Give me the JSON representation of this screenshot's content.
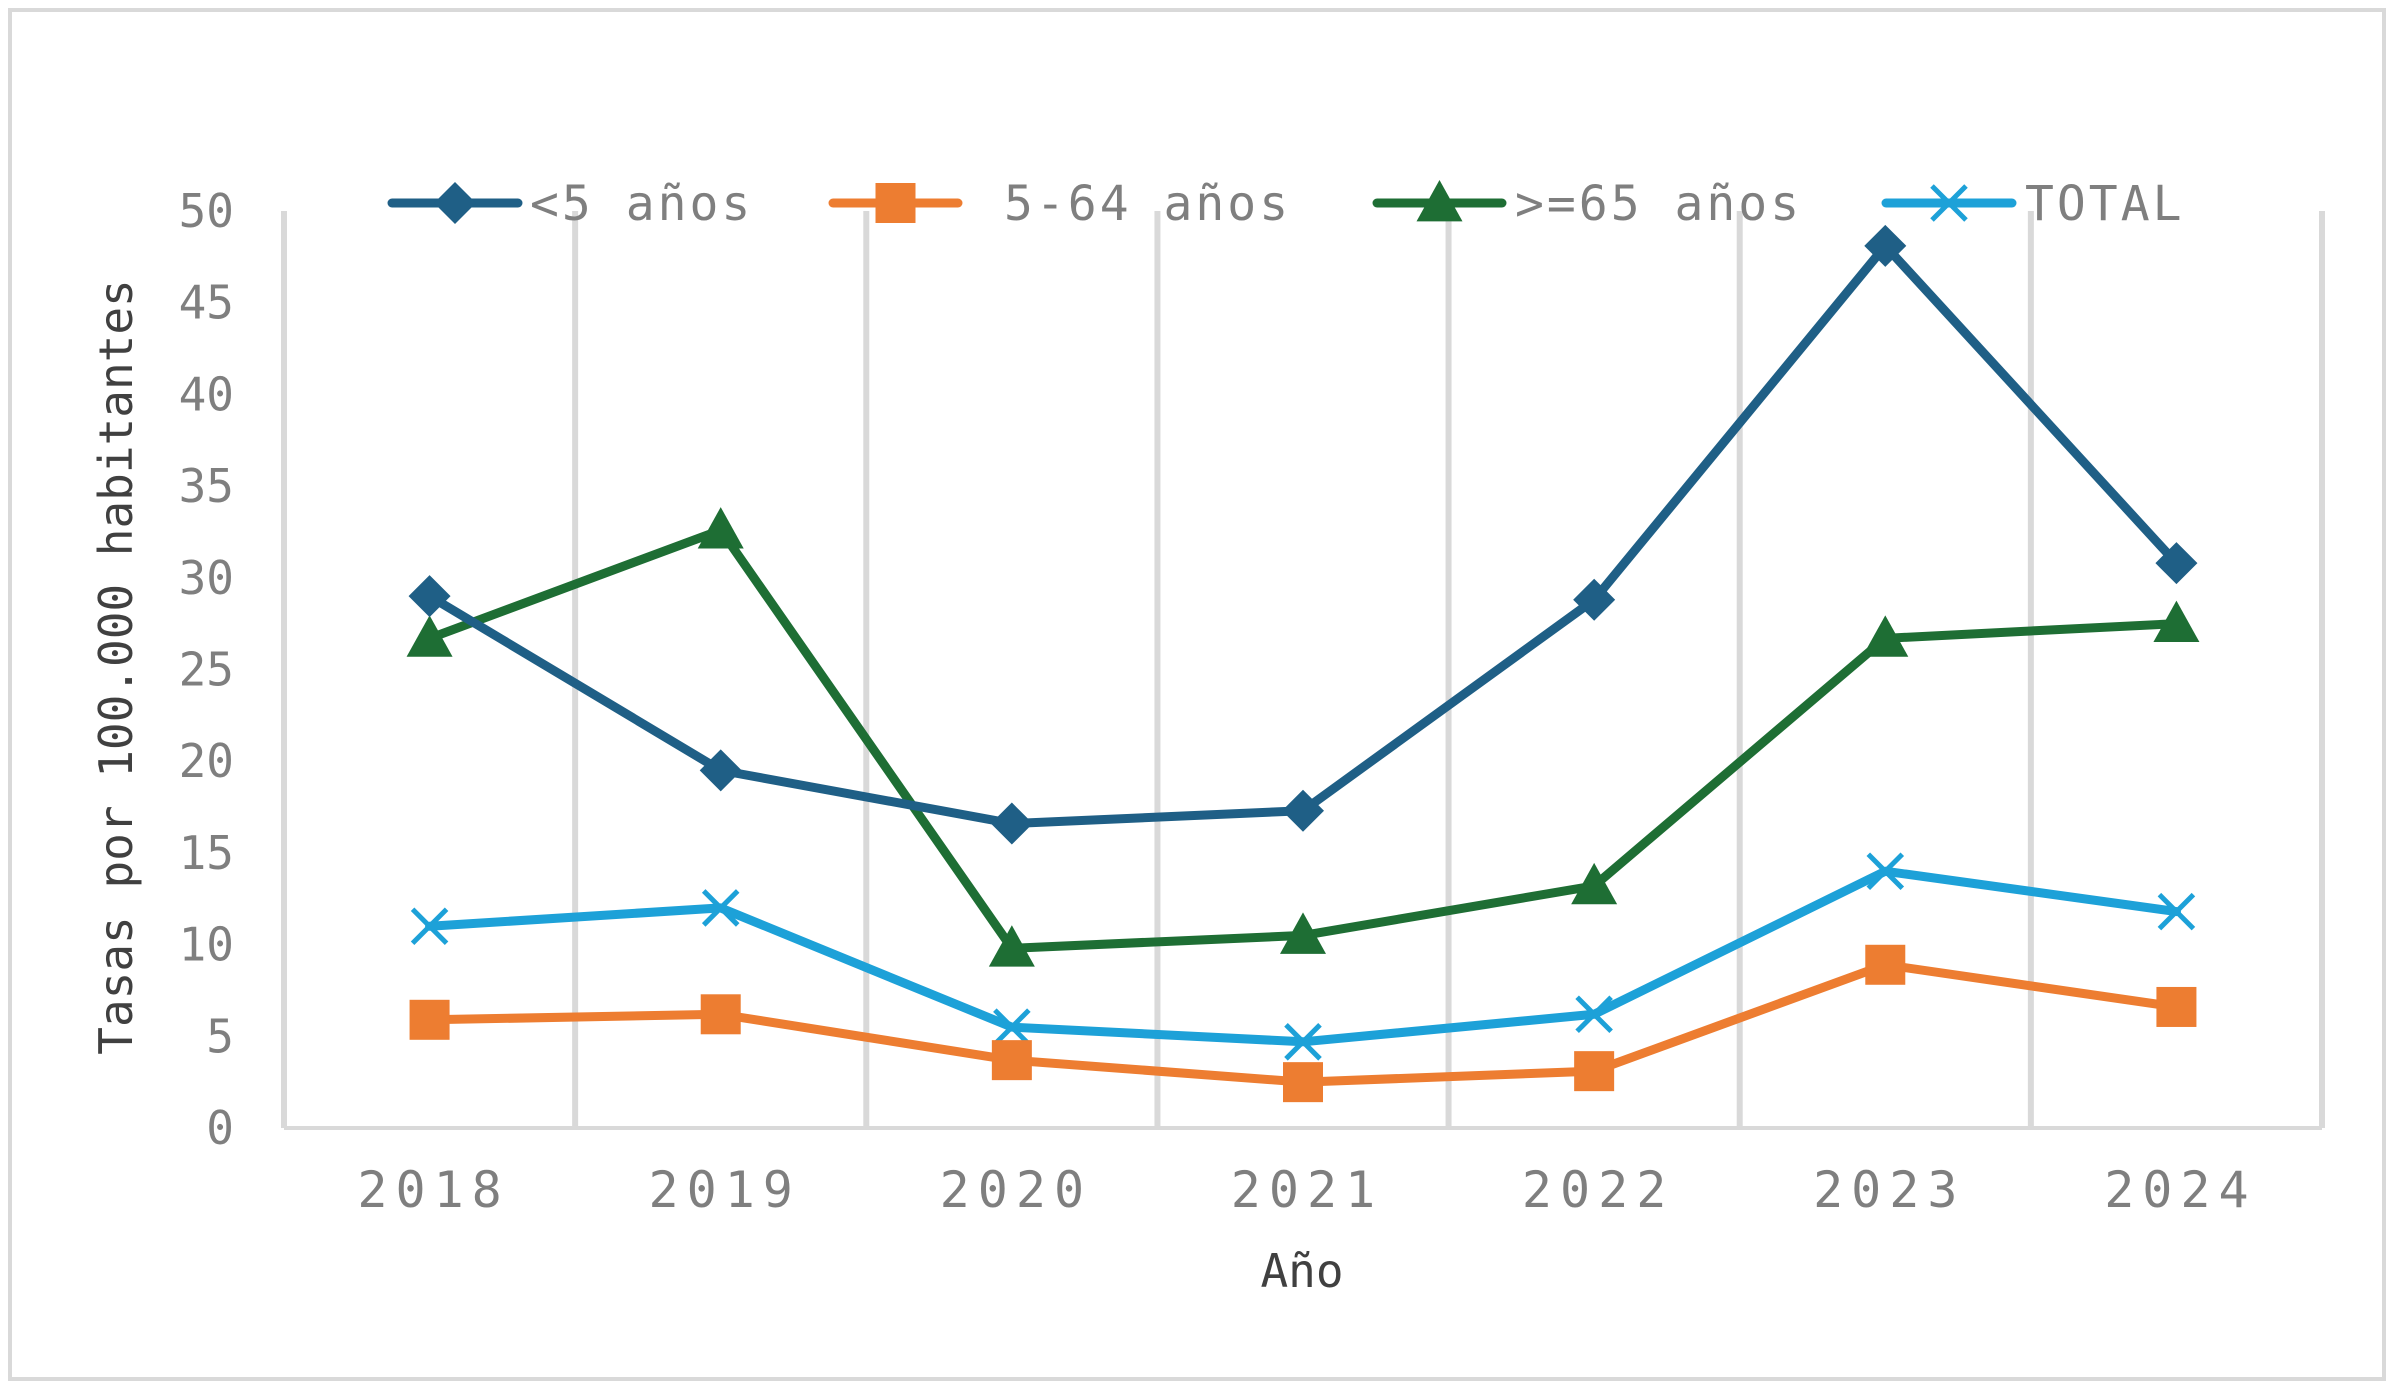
{
  "chart_data": {
    "type": "line",
    "xlabel": "Año",
    "ylabel": "Tasas por 100.000 habitantes",
    "x": [
      "2018",
      "2019",
      "2020",
      "2021",
      "2022",
      "2023",
      "2024"
    ],
    "ylim": [
      0,
      50
    ],
    "yticks": [
      "0",
      "5",
      "10",
      "15",
      "20",
      "25",
      "30",
      "35",
      "40",
      "45",
      "50"
    ],
    "grid": "vertical",
    "legend_position": "top",
    "series": [
      {
        "name": "<5 años",
        "color": "#1f5f86",
        "marker": "diamond",
        "values": [
          29.0,
          19.5,
          16.6,
          17.3,
          28.8,
          48.1,
          30.8
        ]
      },
      {
        "name": "5-64 años",
        "color": "#ed7d31",
        "marker": "square",
        "values": [
          5.9,
          6.2,
          3.7,
          2.5,
          3.1,
          8.9,
          6.6
        ]
      },
      {
        "name": ">=65 años",
        "color": "#1e6e34",
        "marker": "triangle",
        "values": [
          26.7,
          32.6,
          9.8,
          10.5,
          13.2,
          26.7,
          27.5
        ]
      },
      {
        "name": "TOTAL",
        "color": "#1da1d8",
        "marker": "x",
        "values": [
          11.0,
          12.0,
          5.5,
          4.7,
          6.2,
          14.0,
          11.8
        ]
      }
    ]
  }
}
